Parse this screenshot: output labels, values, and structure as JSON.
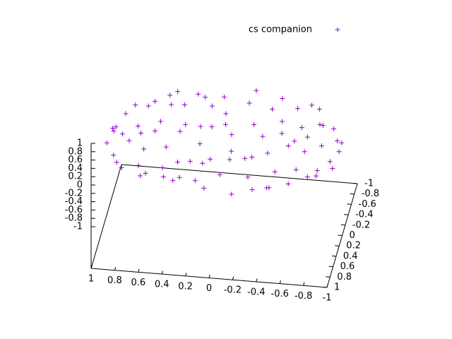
{
  "chart_data": {
    "type": "scatter3d",
    "xlim": [
      -1,
      1
    ],
    "ylim": [
      -1,
      1
    ],
    "zlim": [
      -1,
      1
    ],
    "xticks": [
      1,
      0.8,
      0.6,
      0.4,
      0.2,
      0,
      -0.2,
      -0.4,
      -0.6,
      -0.8,
      -1
    ],
    "yticks": [
      -1,
      -0.8,
      -0.6,
      -0.4,
      -0.2,
      0,
      0.2,
      0.4,
      0.6,
      0.8,
      1
    ],
    "zticks": [
      1,
      0.8,
      0.6,
      0.4,
      0.2,
      0,
      -0.2,
      -0.4,
      -0.6,
      -0.8,
      -1
    ],
    "legend": "top-right",
    "series": [
      {
        "name": "cs companion",
        "color": "#9400d3",
        "x": [
          0.12,
          -0.45,
          0.78,
          -0.91,
          0.33,
          0.05,
          -0.62,
          0.55,
          -0.2,
          0.88,
          -0.74,
          0.41,
          -0.08,
          0.67,
          -0.35,
          0.93,
          -0.52,
          0.18,
          -0.83,
          0.6,
          -0.98,
          0.25,
          -0.4,
          0.72,
          -0.15,
          0.48,
          -0.68,
          0.02,
          0.85,
          -0.28,
          0.38,
          -0.88,
          0.15,
          -0.55,
          0.97,
          -0.1,
          0.62,
          -0.78,
          0.28,
          -0.32,
          0.7,
          -0.6,
          0.45,
          -0.95,
          0.1,
          -0.25,
          0.82,
          -0.48,
          0.35,
          -0.72,
          0.58,
          -0.05,
          0.9,
          -0.82,
          0.22,
          -0.42,
          0.75,
          -0.18,
          0.52,
          -0.65,
          0.05,
          -0.92,
          0.32,
          -0.3,
          0.65,
          -0.5,
          0.95,
          -0.12,
          0.4,
          -0.7,
          0.2,
          -0.38,
          0.8,
          -0.85,
          0.08,
          0.5,
          -0.58,
          0.3,
          -0.98,
          0.68,
          -0.22,
          0.15,
          -0.78,
          0.85,
          -0.45,
          0.42,
          -0.05,
          0.58,
          -0.65,
          0.98
        ],
        "y": [
          0.5,
          -0.3,
          0.2,
          0.1,
          -0.85,
          0.95,
          0.6,
          -0.7,
          -0.4,
          -0.35,
          -0.55,
          0.82,
          0.15,
          0.45,
          0.88,
          0.05,
          -0.8,
          -0.6,
          0.4,
          -0.1,
          -0.12,
          0.3,
          0.25,
          -0.6,
          -0.95,
          0.1,
          -0.2,
          -0.25,
          0.48,
          0.62,
          -0.4,
          -0.38,
          0.75,
          0.05,
          -0.18,
          0.42,
          0.72,
          0.58,
          -0.92,
          -0.68,
          0.05,
          -0.45,
          0.58,
          0.25,
          -0.78,
          0.12,
          -0.52,
          0.78,
          0.35,
          -0.68,
          -0.32,
          0.68,
          0.3,
          -0.05,
          -0.15,
          -0.55,
          -0.15,
          0.92,
          -0.55,
          0.32,
          -0.5,
          -0.3,
          0.9,
          -0.2,
          0.25,
          0.55,
          -0.25,
          -0.72,
          -0.2,
          0.15,
          0.05,
          -0.88,
          0.55,
          0.48,
          0.3,
          -0.82,
          -0.12,
          0.62,
          0.05,
          -0.72,
          0.35,
          -0.35,
          -0.45,
          0.1,
          0.7,
          -0.65,
          -0.1,
          0.68,
          -0.72,
          0.12
        ],
        "z": [
          0.1,
          -0.05,
          0.12,
          -0.12,
          0.03,
          0.08,
          -0.1,
          0.14,
          -0.02,
          0.06,
          -0.08,
          0.11,
          0.0,
          -0.14,
          0.05,
          0.13,
          -0.06,
          0.09,
          -0.11,
          0.02,
          0.07,
          -0.13,
          0.15,
          -0.03,
          0.1,
          -0.09,
          0.04,
          0.12,
          -0.07,
          0.01,
          -0.15,
          0.06,
          -0.01,
          0.11,
          -0.1,
          0.14,
          -0.04,
          0.08,
          -0.12,
          0.03,
          0.13,
          -0.06,
          0.02,
          -0.09,
          0.1,
          -0.14,
          0.07,
          0.0,
          -0.11,
          0.12,
          -0.02,
          0.09,
          -0.13,
          0.05,
          0.15,
          -0.08,
          0.04,
          -0.05,
          0.11,
          -0.1,
          0.06,
          -0.12,
          0.14,
          -0.03,
          0.01,
          0.1,
          -0.15,
          0.08,
          -0.07,
          0.13,
          -0.01,
          0.05,
          -0.1,
          0.12,
          -0.04,
          0.09,
          0.02,
          -0.13,
          0.07,
          -0.06,
          0.11,
          -0.09,
          0.03,
          0.14,
          -0.11,
          0.0,
          0.08,
          -0.02,
          0.15,
          -0.08
        ]
      }
    ]
  }
}
